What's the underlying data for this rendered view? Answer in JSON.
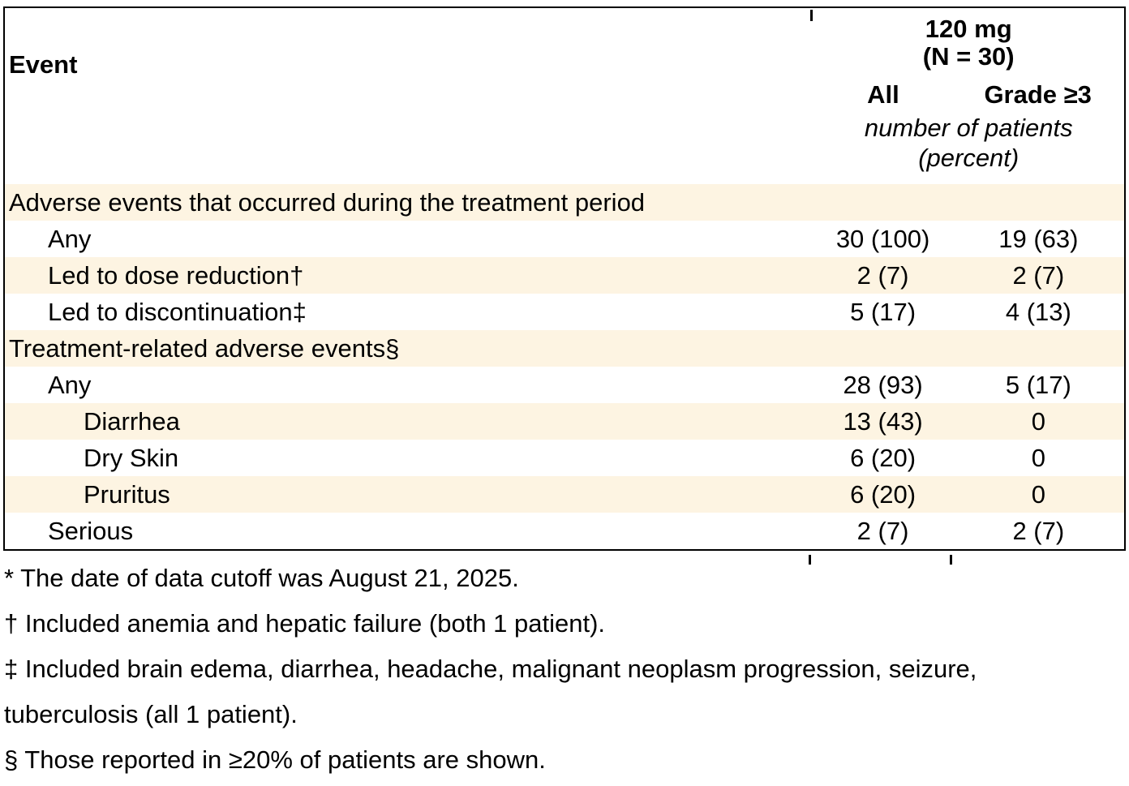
{
  "table": {
    "header": {
      "event_label": "Event",
      "group_line1": "120 mg",
      "group_line2": "(N = 30)",
      "col_all": "All",
      "col_grade": "Grade ≥3",
      "unit_line1": "number of patients",
      "unit_line2": "(percent)"
    },
    "rows": [
      {
        "type": "section",
        "label": "Adverse events that occurred during the treatment period",
        "indent": 0,
        "shaded": true
      },
      {
        "type": "data",
        "label": "Any",
        "indent": 1,
        "all": "30 (100)",
        "grade": "19 (63)",
        "shaded": false
      },
      {
        "type": "data",
        "label": "Led to dose reduction†",
        "indent": 1,
        "all": "2 (7)",
        "grade": "2 (7)",
        "shaded": true
      },
      {
        "type": "data",
        "label": "Led to discontinuation‡",
        "indent": 1,
        "all": "5 (17)",
        "grade": "4 (13)",
        "shaded": false
      },
      {
        "type": "section",
        "label": "Treatment-related adverse events§",
        "indent": 0,
        "shaded": true
      },
      {
        "type": "data",
        "label": "Any",
        "indent": 1,
        "all": "28 (93)",
        "grade": "5 (17)",
        "shaded": false
      },
      {
        "type": "data",
        "label": "Diarrhea",
        "indent": 2,
        "all": "13 (43)",
        "grade": "0",
        "shaded": true
      },
      {
        "type": "data",
        "label": "Dry Skin",
        "indent": 2,
        "all": "6 (20)",
        "grade": "0",
        "shaded": false
      },
      {
        "type": "data",
        "label": "Pruritus",
        "indent": 2,
        "all": "6 (20)",
        "grade": "0",
        "shaded": true
      },
      {
        "type": "data",
        "label": "Serious",
        "indent": 1,
        "all": "2 (7)",
        "grade": "2 (7)",
        "shaded": false
      }
    ]
  },
  "footnotes": [
    "* The date of data cutoff was August 21, 2025.",
    "† Included anemia and hepatic failure (both 1 patient).",
    "‡ Included brain edema, diarrhea, headache, malignant neoplasm progression, seizure, tuberculosis (all 1 patient).",
    "§ Those reported in ≥20% of patients are shown."
  ],
  "colors": {
    "stripe": "#FDF4E2",
    "border": "#000000",
    "text": "#000000",
    "background": "#FFFFFF"
  }
}
